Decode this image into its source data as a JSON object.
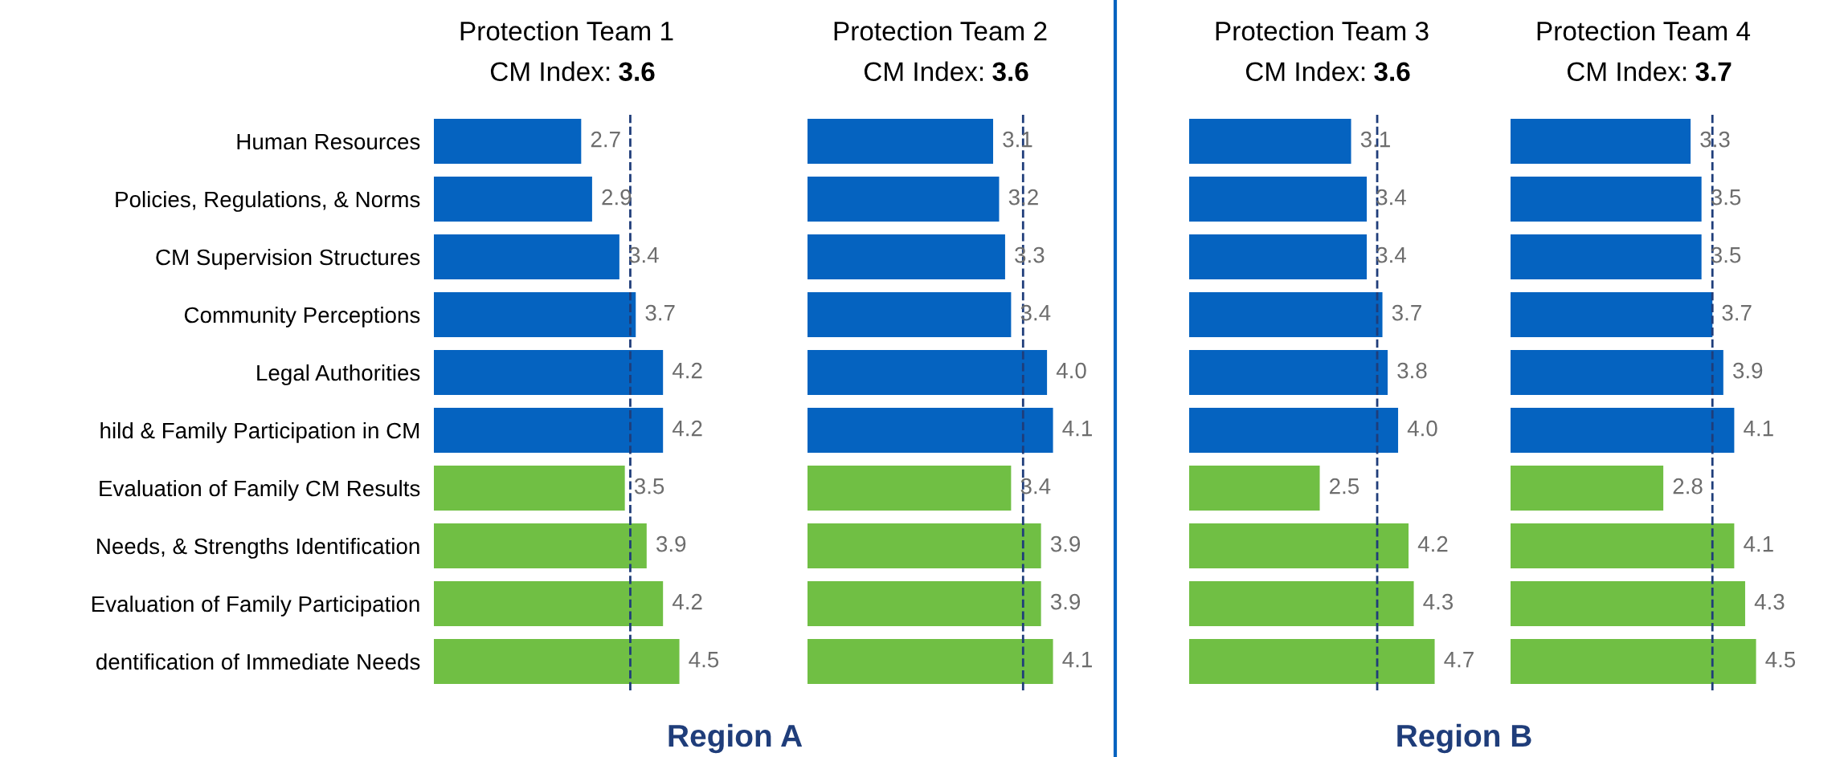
{
  "chart_data": [
    {
      "type": "bar",
      "orientation": "horizontal",
      "title": "Protection Team 1",
      "subtitle": "CM Index:",
      "categories": [
        "Human Resources",
        "Policies, Regulations, & Norms",
        "CM Supervision Structures",
        "Community Perceptions",
        "Legal Authorities",
        "hild & Family Participation in CM",
        "Evaluation of Family CM Results",
        "Needs, & Strengths Identification",
        "Evaluation of Family Participation",
        "dentification of Immediate Needs"
      ],
      "values": [
        2.7,
        2.9,
        3.4,
        3.7,
        4.2,
        4.2,
        3.5,
        3.9,
        4.2,
        4.5
      ],
      "value_labels": [
        "2.7",
        "2.9",
        "3.4",
        "3.7",
        "4.2",
        "4.2",
        "3.5",
        "3.9",
        "4.2",
        "4.5"
      ],
      "colors": [
        "#0563c0",
        "#0563c0",
        "#0563c0",
        "#0563c0",
        "#0563c0",
        "#0563c0",
        "#70bf44",
        "#70bf44",
        "#70bf44",
        "#70bf44"
      ],
      "tick_labels": "y",
      "ref_lines": [
        {
          "axis": "x",
          "value": 3.6,
          "label": "3.6",
          "color": "#1f3d7a",
          "line_style": "dashed"
        }
      ],
      "annotations": [
        "Region A"
      ]
    },
    {
      "type": "bar",
      "orientation": "horizontal",
      "title": "Protection Team 2",
      "subtitle": "CM Index:",
      "categories": [
        null,
        null,
        null,
        null,
        null,
        null,
        null,
        null,
        null,
        null
      ],
      "values": [
        3.1,
        3.2,
        3.3,
        3.4,
        4.0,
        4.1,
        3.4,
        3.9,
        3.9,
        4.1
      ],
      "value_labels": [
        "3.1",
        "3.2",
        "3.3",
        "3.4",
        "4.0",
        "4.1",
        "3.4",
        "3.9",
        "3.9",
        "4.1"
      ],
      "colors": [
        "#0563c0",
        "#0563c0",
        "#0563c0",
        "#0563c0",
        "#0563c0",
        "#0563c0",
        "#70bf44",
        "#70bf44",
        "#70bf44",
        "#70bf44"
      ],
      "tick_labels": false,
      "ref_lines": [
        {
          "axis": "x",
          "value": 3.6,
          "label": "3.6",
          "color": "#1f3d7a",
          "line_style": "dashed"
        }
      ]
    },
    {
      "type": "bar",
      "orientation": "horizontal",
      "title": "Protection Team 3",
      "subtitle": "CM Index:",
      "categories": [
        null,
        null,
        null,
        null,
        null,
        null,
        null,
        null,
        null,
        null
      ],
      "values": [
        3.1,
        3.4,
        3.4,
        3.7,
        3.8,
        4.0,
        2.5,
        4.2,
        4.3,
        4.7
      ],
      "value_labels": [
        "3.1",
        "3.4",
        "3.4",
        "3.7",
        "3.8",
        "4.0",
        "2.5",
        "4.2",
        "4.3",
        "4.7"
      ],
      "colors": [
        "#0563c0",
        "#0563c0",
        "#0563c0",
        "#0563c0",
        "#0563c0",
        "#0563c0",
        "#70bf44",
        "#70bf44",
        "#70bf44",
        "#70bf44"
      ],
      "tick_labels": false,
      "ref_lines": [
        {
          "axis": "x",
          "value": 3.6,
          "label": "3.6",
          "color": "#1f3d7a",
          "line_style": "dashed"
        }
      ],
      "annotations": [
        "Region B"
      ]
    },
    {
      "type": "bar",
      "orientation": "horizontal",
      "title": "Protection Team 4",
      "subtitle": "CM Index:",
      "categories": [
        null,
        null,
        null,
        null,
        null,
        null,
        null,
        null,
        null,
        null
      ],
      "values": [
        3.3,
        3.5,
        3.5,
        3.7,
        3.9,
        4.1,
        2.8,
        4.1,
        4.3,
        4.5
      ],
      "value_labels": [
        "3.3",
        "3.5",
        "3.5",
        "3.7",
        "3.9",
        "4.1",
        "2.8",
        "4.1",
        "4.3",
        "4.5"
      ],
      "colors": [
        "#0563c0",
        "#0563c0",
        "#0563c0",
        "#0563c0",
        "#0563c0",
        "#0563c0",
        "#70bf44",
        "#70bf44",
        "#70bf44",
        "#70bf44"
      ],
      "tick_labels": false,
      "ref_lines": [
        {
          "axis": "x",
          "value": 3.7,
          "label": "3.7",
          "color": "#1f3d7a",
          "line_style": "dashed"
        }
      ]
    }
  ]
}
